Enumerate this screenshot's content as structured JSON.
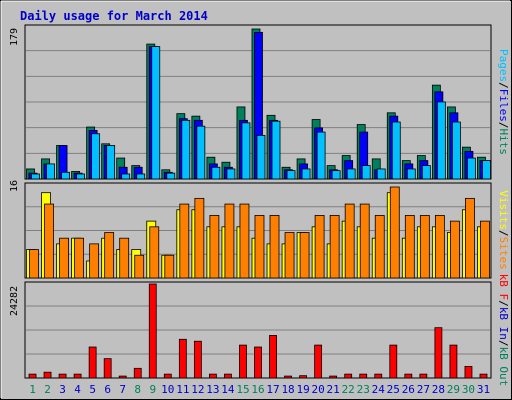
{
  "title": "Daily usage for March 2014",
  "colors": {
    "background": "#C0C0C0",
    "panel": "#C0C0C0",
    "title": "#0000CC",
    "hits": "#00805C",
    "files": "#0000FF",
    "pages": "#00C0FF",
    "visits": "#FFFF00",
    "sites": "#FF8000",
    "kb_in": "#0000CC",
    "kb_out": "#00805C",
    "kb_f": "#FF0000",
    "weekend_label": "#00805C",
    "weekday_label": "#0000CC"
  },
  "y_scale_labels": {
    "top": "179",
    "middle": "16",
    "bottom": "24282"
  },
  "right_labels": {
    "top": [
      {
        "text": "Pages",
        "color": "#00C0FF"
      },
      {
        "text": "/",
        "color": "#000000"
      },
      {
        "text": "Files",
        "color": "#0000FF"
      },
      {
        "text": "/",
        "color": "#000000"
      },
      {
        "text": "Hits",
        "color": "#00805C"
      }
    ],
    "middle": [
      {
        "text": "Visits",
        "color": "#FFFF00"
      },
      {
        "text": "/",
        "color": "#000000"
      },
      {
        "text": "Sites",
        "color": "#FF8000"
      }
    ],
    "bottom": [
      {
        "text": "kB F",
        "color": "#FF0000"
      },
      {
        "text": "/",
        "color": "#000000"
      },
      {
        "text": "kB In",
        "color": "#0000CC"
      },
      {
        "text": "/",
        "color": "#000000"
      },
      {
        "text": "kB Out",
        "color": "#00805C"
      }
    ]
  },
  "chart_data": {
    "type": "bar",
    "title": "Daily usage for March 2014",
    "categories": [
      "1",
      "2",
      "3",
      "4",
      "5",
      "6",
      "7",
      "8",
      "9",
      "10",
      "11",
      "12",
      "13",
      "14",
      "15",
      "16",
      "17",
      "18",
      "19",
      "20",
      "21",
      "22",
      "23",
      "24",
      "25",
      "26",
      "27",
      "28",
      "29",
      "30",
      "31"
    ],
    "weekend_days": [
      "1",
      "2",
      "8",
      "9",
      "15",
      "16",
      "22",
      "23",
      "29",
      "30"
    ],
    "panels": [
      {
        "name": "hits-files-pages",
        "ymax": 179,
        "series": [
          {
            "name": "Hits",
            "values": [
              12,
              24,
              40,
              9,
              62,
              42,
              25,
              16,
              161,
              11,
              78,
              75,
              26,
              20,
              86,
              179,
              76,
              14,
              24,
              71,
              16,
              28,
              65,
              24,
              79,
              22,
              28,
              112,
              86,
              38,
              26
            ]
          },
          {
            "name": "Files",
            "values": [
              7,
              18,
              40,
              7,
              58,
              40,
              14,
              14,
              158,
              8,
              72,
              70,
              18,
              14,
              70,
              175,
              70,
              11,
              18,
              61,
              11,
              22,
              56,
              11,
              75,
              18,
              22,
              104,
              79,
              33,
              22
            ]
          },
          {
            "name": "Pages",
            "values": [
              6,
              18,
              8,
              6,
              54,
              40,
              6,
              6,
              158,
              7,
              70,
              63,
              14,
              12,
              67,
              52,
              69,
              10,
              12,
              56,
              10,
              12,
              16,
              12,
              68,
              12,
              16,
              92,
              68,
              25,
              22
            ]
          }
        ]
      },
      {
        "name": "visits-sites",
        "ymax": 16,
        "series": [
          {
            "name": "Visits",
            "values": [
              5,
              15,
              6,
              7,
              3,
              7,
              5,
              5,
              10,
              4,
              12,
              12,
              9,
              9,
              9,
              7,
              6,
              6,
              8,
              9,
              6,
              10,
              9,
              7,
              15,
              7,
              9,
              9,
              8,
              12,
              9
            ]
          },
          {
            "name": "Sites",
            "values": [
              5,
              13,
              7,
              7,
              6,
              8,
              7,
              4,
              9,
              4,
              13,
              14,
              11,
              13,
              13,
              11,
              11,
              8,
              8,
              11,
              11,
              13,
              13,
              11,
              16,
              11,
              11,
              11,
              10,
              14,
              10
            ]
          }
        ]
      },
      {
        "name": "kb",
        "ymax": 24282,
        "series": [
          {
            "name": "kB F",
            "values": [
              1000,
              1500,
              1000,
              1000,
              8000,
              5000,
              500,
              2500,
              24282,
              1000,
              10000,
              9500,
              1000,
              1000,
              8500,
              8000,
              11000,
              500,
              600,
              8500,
              500,
              1000,
              1000,
              1000,
              8500,
              1000,
              1000,
              13000,
              8500,
              3000,
              1000
            ]
          }
        ]
      }
    ],
    "grid": true
  }
}
